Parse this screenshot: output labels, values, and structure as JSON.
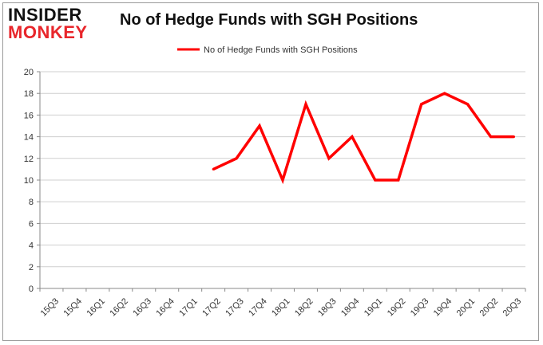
{
  "brand": {
    "line1": "INSIDER",
    "line2": "MONKEY",
    "accent": "#e8262b"
  },
  "chart_data": {
    "type": "line",
    "title": "No of Hedge Funds with SGH Positions",
    "xlabel": "",
    "ylabel": "",
    "ylim": [
      0,
      20
    ],
    "yticks": [
      0,
      2,
      4,
      6,
      8,
      10,
      12,
      14,
      16,
      18,
      20
    ],
    "categories": [
      "15Q3",
      "15Q4",
      "16Q1",
      "16Q2",
      "16Q3",
      "16Q4",
      "17Q1",
      "17Q2",
      "17Q3",
      "17Q4",
      "18Q1",
      "18Q2",
      "18Q3",
      "18Q4",
      "19Q1",
      "19Q2",
      "19Q3",
      "19Q4",
      "20Q1",
      "20Q2",
      "20Q3"
    ],
    "grid": true,
    "legend_position": "top",
    "series": [
      {
        "name": "No of Hedge Funds with SGH Positions",
        "color": "#ff0000",
        "values": [
          null,
          null,
          null,
          null,
          null,
          null,
          null,
          11,
          12,
          15,
          10,
          17,
          12,
          14,
          10,
          10,
          17,
          18,
          17,
          14,
          14
        ]
      }
    ]
  }
}
